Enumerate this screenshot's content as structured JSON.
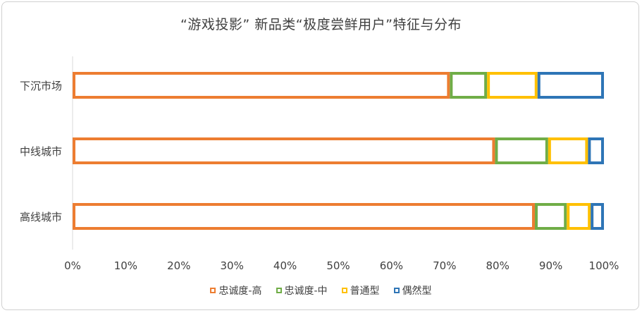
{
  "chart_data": {
    "type": "bar",
    "orientation": "horizontal",
    "stacked": true,
    "normalized": true,
    "title": "“游戏投影” 新品类“极度尝鲜用户”特征与分布",
    "categories": [
      "下沉市场",
      "中线城市",
      "高线城市"
    ],
    "series": [
      {
        "name": "忠诚度-高",
        "color": "#ED7D31",
        "values": [
          71,
          79.5,
          87
        ]
      },
      {
        "name": "忠诚度-中",
        "color": "#70AD47",
        "values": [
          7,
          10,
          6
        ]
      },
      {
        "name": "普通型",
        "color": "#FFC000",
        "values": [
          9.5,
          7.5,
          4.5
        ]
      },
      {
        "name": "偶然型",
        "color": "#2E75B6",
        "values": [
          12.5,
          3,
          2.5
        ]
      }
    ],
    "xlim": [
      0,
      100
    ],
    "xticks": [
      "0%",
      "10%",
      "20%",
      "30%",
      "40%",
      "50%",
      "60%",
      "70%",
      "80%",
      "90%",
      "100%"
    ],
    "grid": false,
    "legend": "bottom"
  }
}
